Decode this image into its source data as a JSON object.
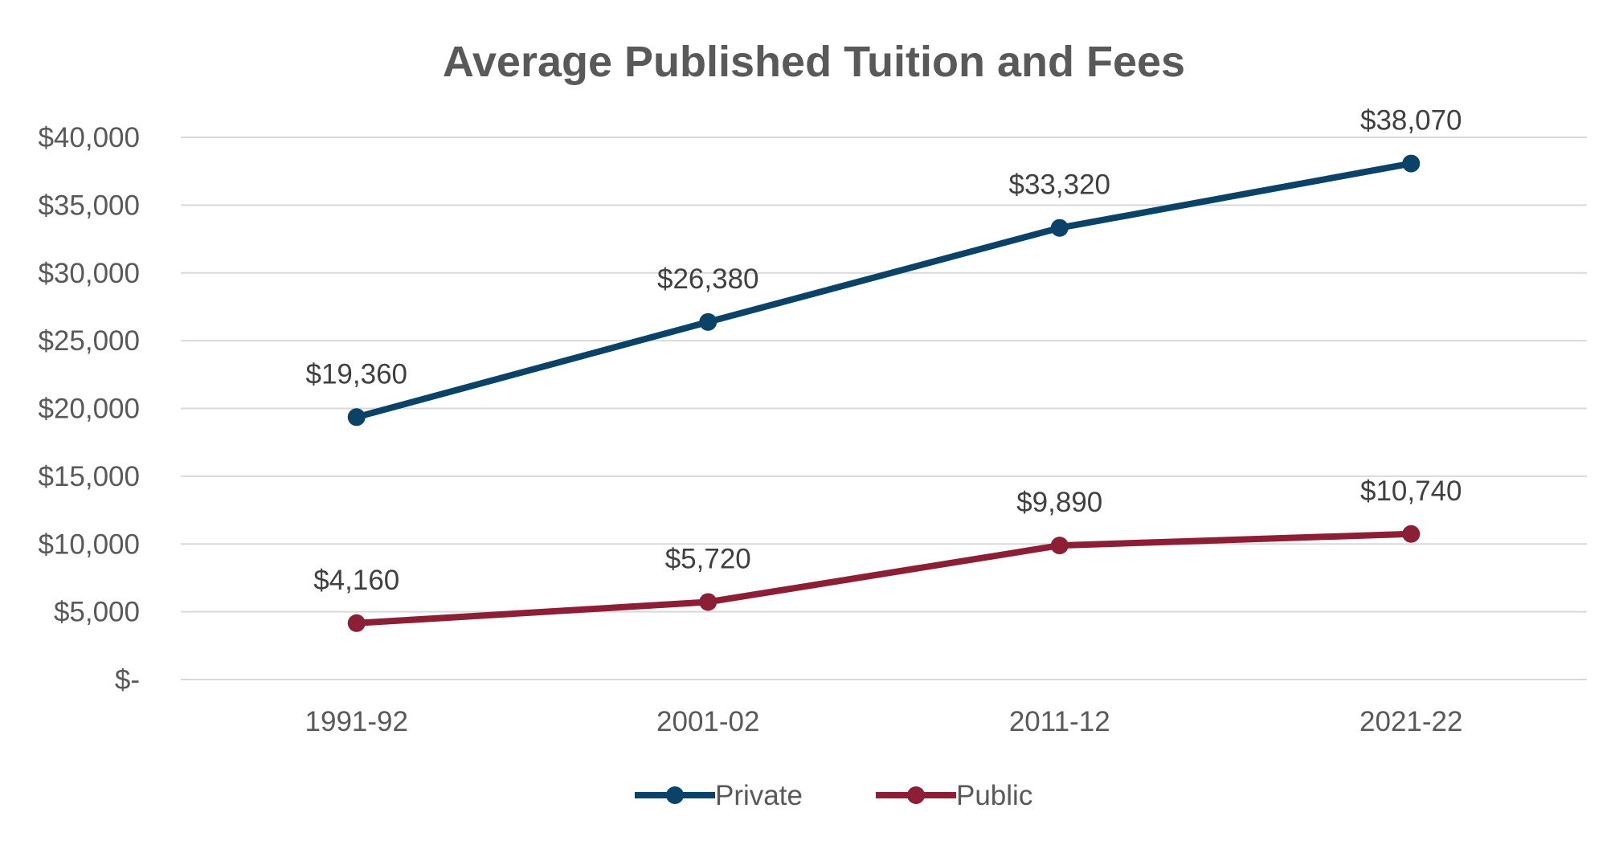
{
  "chart_data": {
    "type": "line",
    "title": "Average Published Tuition and Fees",
    "xlabel": "",
    "ylabel": "",
    "categories": [
      "1991-92",
      "2001-02",
      "2011-12",
      "2021-22"
    ],
    "ylim": [
      0,
      40000
    ],
    "yticks": [
      0,
      5000,
      10000,
      15000,
      20000,
      25000,
      30000,
      35000,
      40000
    ],
    "ytick_labels": [
      "$-",
      "$5,000",
      "$10,000",
      "$15,000",
      "$20,000",
      "$25,000",
      "$30,000",
      "$35,000",
      "$40,000"
    ],
    "grid": true,
    "legend_position": "bottom",
    "series": [
      {
        "name": "Private",
        "color": "#0b4368",
        "values": [
          19360,
          26380,
          33320,
          38070
        ],
        "labels": [
          "$19,360",
          "$26,380",
          "$33,320",
          "$38,070"
        ]
      },
      {
        "name": "Public",
        "color": "#8c1f35",
        "values": [
          4160,
          5720,
          9890,
          10740
        ],
        "labels": [
          "$4,160",
          "$5,720",
          "$9,890",
          "$10,740"
        ]
      }
    ]
  }
}
